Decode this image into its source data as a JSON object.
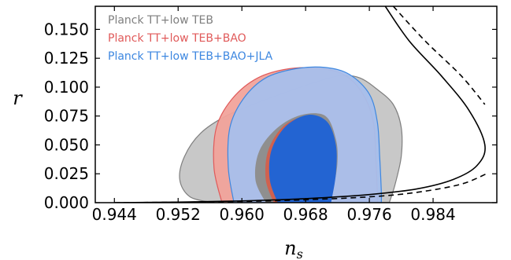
{
  "chart_data": {
    "type": "contour",
    "xlabel": "n_s",
    "ylabel": "r",
    "xlabel_main": "n",
    "xlabel_sub": "s",
    "xlim": [
      0.9416,
      0.992
    ],
    "ylim": [
      0.0,
      0.17
    ],
    "x_ticks": [
      "0.944",
      "0.952",
      "0.960",
      "0.968",
      "0.976",
      "0.984"
    ],
    "y_ticks": [
      "0.000",
      "0.025",
      "0.050",
      "0.075",
      "0.100",
      "0.125",
      "0.150"
    ],
    "grid": false,
    "legend_position": "top-left",
    "series": [
      {
        "name": "Planck TT+low TEB",
        "color": "#7f7f7f",
        "fill_outer": "#c8c8c8",
        "fill_inner": "#8f8f8f",
        "outer": [
          [
            0.9565,
            0.0
          ],
          [
            0.9535,
            0.005
          ],
          [
            0.9522,
            0.02
          ],
          [
            0.9528,
            0.04
          ],
          [
            0.9548,
            0.06
          ],
          [
            0.958,
            0.075
          ],
          [
            0.9625,
            0.088
          ],
          [
            0.9665,
            0.098
          ],
          [
            0.97,
            0.106
          ],
          [
            0.9725,
            0.11
          ],
          [
            0.9748,
            0.108
          ],
          [
            0.977,
            0.098
          ],
          [
            0.979,
            0.085
          ],
          [
            0.98,
            0.065
          ],
          [
            0.98,
            0.04
          ],
          [
            0.9792,
            0.015
          ],
          [
            0.9785,
            0.0
          ]
        ],
        "inner": [
          [
            0.963,
            0.0
          ],
          [
            0.9617,
            0.02
          ],
          [
            0.9622,
            0.045
          ],
          [
            0.9645,
            0.065
          ],
          [
            0.9675,
            0.076
          ],
          [
            0.9705,
            0.075
          ],
          [
            0.9718,
            0.055
          ],
          [
            0.972,
            0.035
          ],
          [
            0.9715,
            0.015
          ],
          [
            0.9705,
            0.0
          ]
        ]
      },
      {
        "name": "Planck TT+low TEB+BAO",
        "color": "#e05a5a",
        "fill_outer": "#f1a39b",
        "fill_inner": "#d0614f",
        "outer": [
          [
            0.9575,
            0.0
          ],
          [
            0.9565,
            0.03
          ],
          [
            0.9568,
            0.065
          ],
          [
            0.9588,
            0.09
          ],
          [
            0.962,
            0.108
          ],
          [
            0.966,
            0.116
          ],
          [
            0.97,
            0.116
          ],
          [
            0.973,
            0.11
          ],
          [
            0.9752,
            0.094
          ],
          [
            0.9765,
            0.07
          ],
          [
            0.9768,
            0.04
          ],
          [
            0.977,
            0.01
          ],
          [
            0.977,
            0.0
          ]
        ],
        "inner": [
          [
            0.964,
            0.0
          ],
          [
            0.963,
            0.02
          ],
          [
            0.9633,
            0.045
          ],
          [
            0.9652,
            0.066
          ],
          [
            0.968,
            0.075
          ],
          [
            0.9702,
            0.07
          ],
          [
            0.9712,
            0.05
          ],
          [
            0.9712,
            0.025
          ],
          [
            0.9705,
            0.0
          ]
        ]
      },
      {
        "name": "Planck TT+low TEB+BAO+JLA",
        "color": "#3d87e0",
        "fill_outer": "#a6bfec",
        "fill_inner": "#2364d2",
        "outer": [
          [
            0.959,
            0.0
          ],
          [
            0.9583,
            0.03
          ],
          [
            0.9585,
            0.065
          ],
          [
            0.9602,
            0.09
          ],
          [
            0.963,
            0.108
          ],
          [
            0.9668,
            0.116
          ],
          [
            0.9705,
            0.117
          ],
          [
            0.9735,
            0.111
          ],
          [
            0.976,
            0.094
          ],
          [
            0.977,
            0.07
          ],
          [
            0.9773,
            0.04
          ],
          [
            0.9775,
            0.01
          ],
          [
            0.9775,
            0.0
          ]
        ],
        "inner": [
          [
            0.9645,
            0.0
          ],
          [
            0.9635,
            0.02
          ],
          [
            0.9637,
            0.045
          ],
          [
            0.9655,
            0.066
          ],
          [
            0.9683,
            0.076
          ],
          [
            0.9707,
            0.07
          ],
          [
            0.9718,
            0.05
          ],
          [
            0.9718,
            0.025
          ],
          [
            0.9712,
            0.0
          ]
        ]
      }
    ],
    "theory_curves": [
      {
        "style": "solid",
        "color": "#000000",
        "points": [
          [
            0.944,
            0.0
          ],
          [
            0.952,
            0.0005
          ],
          [
            0.96,
            0.0015
          ],
          [
            0.968,
            0.0035
          ],
          [
            0.976,
            0.007
          ],
          [
            0.982,
            0.012
          ],
          [
            0.9865,
            0.02
          ],
          [
            0.9895,
            0.032
          ],
          [
            0.9905,
            0.05
          ],
          [
            0.9885,
            0.08
          ],
          [
            0.985,
            0.11
          ],
          [
            0.981,
            0.14
          ],
          [
            0.978,
            0.17
          ]
        ]
      },
      {
        "style": "dashed",
        "color": "#000000",
        "points": [
          [
            0.944,
            0.0
          ],
          [
            0.952,
            0.0004
          ],
          [
            0.96,
            0.001
          ],
          [
            0.968,
            0.0025
          ],
          [
            0.976,
            0.005
          ],
          [
            0.982,
            0.009
          ],
          [
            0.9875,
            0.016
          ],
          [
            0.991,
            0.026
          ]
        ]
      },
      {
        "style": "dashed",
        "color": "#000000",
        "points": [
          [
            0.979,
            0.17
          ],
          [
            0.983,
            0.14
          ],
          [
            0.9875,
            0.11
          ],
          [
            0.9905,
            0.085
          ]
        ]
      }
    ]
  }
}
